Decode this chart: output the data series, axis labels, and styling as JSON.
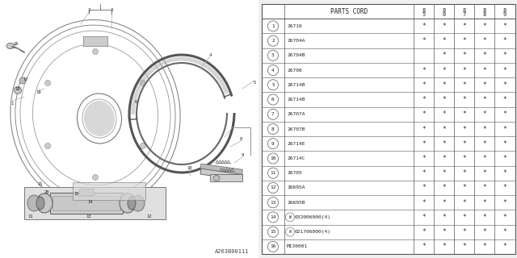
{
  "bg_color": "#f0f0f0",
  "diagram_bg": "#e8e8e8",
  "table_bg": "#ffffff",
  "line_color": "#555555",
  "text_color": "#222222",
  "header": [
    "PARTS CORD",
    "85",
    "86",
    "87",
    "88",
    "89"
  ],
  "rows": [
    [
      "1",
      "26716",
      "*",
      "*",
      "*",
      "*",
      "*"
    ],
    [
      "2",
      "26704A",
      "*",
      "*",
      "*",
      "*",
      "*"
    ],
    [
      "3",
      "26704B",
      " ",
      "*",
      "*",
      "*",
      "*"
    ],
    [
      "4",
      "26706",
      "*",
      "*",
      "*",
      "*",
      "*"
    ],
    [
      "5",
      "26714B",
      "*",
      "*",
      "*",
      "*",
      "*"
    ],
    [
      "6",
      "26714B",
      "*",
      "*",
      "*",
      "*",
      "*"
    ],
    [
      "7",
      "26707A",
      "*",
      "*",
      "*",
      "*",
      "*"
    ],
    [
      "8",
      "26707B",
      "*",
      "*",
      "*",
      "*",
      "*"
    ],
    [
      "9",
      "26714E",
      "*",
      "*",
      "*",
      "*",
      "*"
    ],
    [
      "10",
      "26714C",
      "*",
      "*",
      "*",
      "*",
      "*"
    ],
    [
      "11",
      "26705",
      "*",
      "*",
      "*",
      "*",
      "*"
    ],
    [
      "12",
      "26695A",
      "*",
      "*",
      "*",
      "*",
      "*"
    ],
    [
      "13",
      "26695B",
      "*",
      "*",
      "*",
      "*",
      "*"
    ],
    [
      "14",
      "W032006000(4)",
      "*",
      "*",
      "*",
      "*",
      "*"
    ],
    [
      "15",
      "N021706000(4)",
      "*",
      "*",
      "*",
      "*",
      "*"
    ],
    [
      "16",
      "MI30001",
      "*",
      "*",
      "*",
      "*",
      "*"
    ]
  ],
  "diagram_code": "A263B00111",
  "font_size": 5.5,
  "font_size_small": 4.5
}
